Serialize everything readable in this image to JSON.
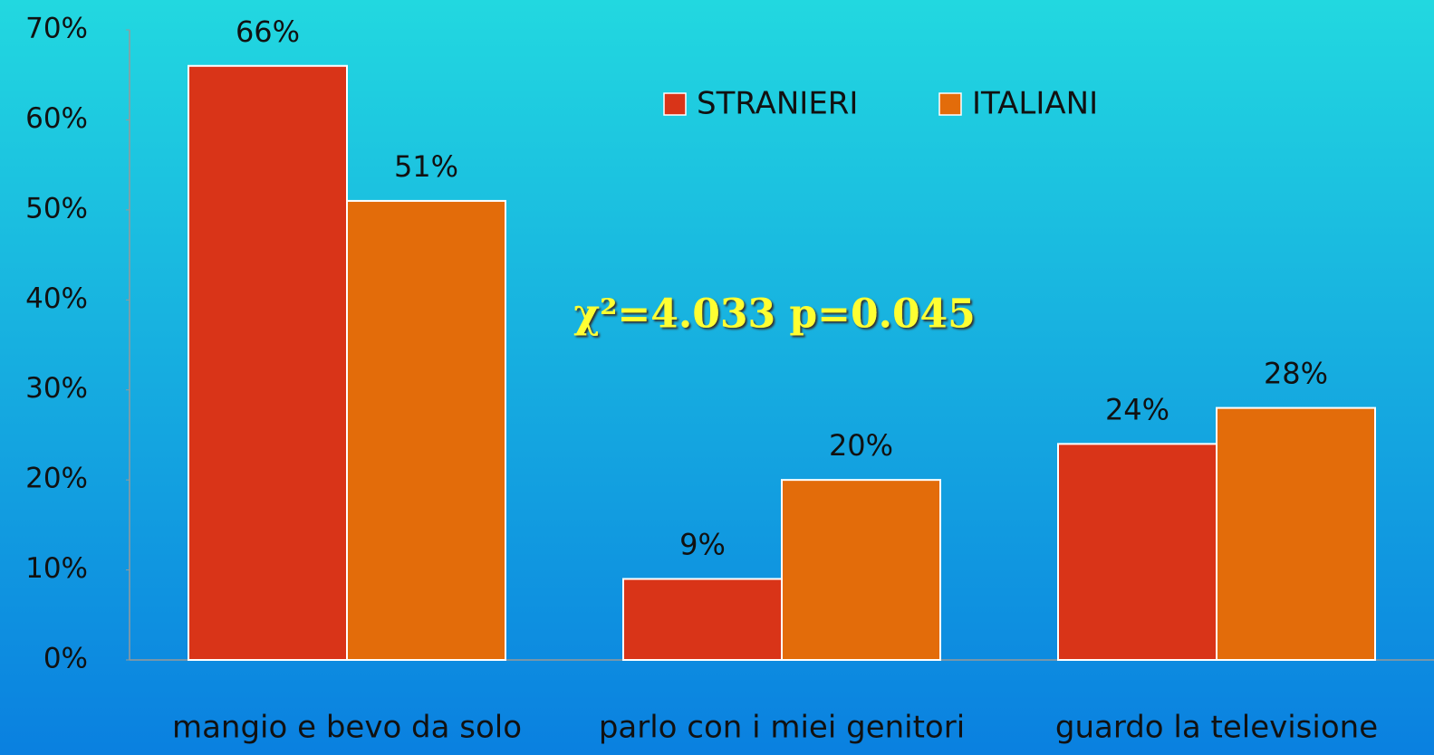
{
  "chart_data": {
    "type": "bar",
    "categories": [
      "mangio e bevo da solo",
      "parlo con i miei genitori",
      "guardo la televisione"
    ],
    "series": [
      {
        "name": "STRANIERI",
        "color": "#d93418",
        "values": [
          66,
          9,
          24
        ],
        "value_labels": [
          "66%",
          "9%",
          "24%"
        ]
      },
      {
        "name": "ITALIANI",
        "color": "#e36c0a",
        "values": [
          51,
          20,
          28
        ],
        "value_labels": [
          "51%",
          "20%",
          "28%"
        ]
      }
    ],
    "annotation": "χ²=4.033 p=0.045",
    "ylim": [
      0,
      70
    ],
    "yticks": [
      {
        "value": 0,
        "label": "0%"
      },
      {
        "value": 10,
        "label": "10%"
      },
      {
        "value": 20,
        "label": "20%"
      },
      {
        "value": 30,
        "label": "30%"
      },
      {
        "value": 40,
        "label": "40%"
      },
      {
        "value": 50,
        "label": "50%"
      },
      {
        "value": 60,
        "label": "60%"
      },
      {
        "value": 70,
        "label": "70%"
      }
    ],
    "legend": "top"
  }
}
